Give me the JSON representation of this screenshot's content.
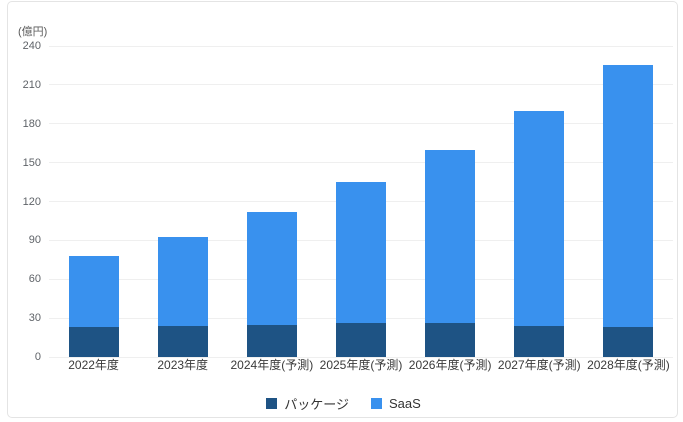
{
  "unit_label": "(億円)",
  "colors": {
    "package_series": "#1e5384",
    "saas_series": "#3991ee",
    "gridline": "#efefef",
    "tick_text": "#5f6368",
    "axis_label_text": "#3a3a3a",
    "card_border": "#e4e4e4",
    "background": "#ffffff"
  },
  "chart_data": {
    "type": "bar",
    "stacked": true,
    "title": "",
    "ylabel": "(億円)",
    "xlabel": "",
    "categories": [
      "2022年度",
      "2023年度",
      "2024年度(予測)",
      "2025年度(予測)",
      "2026年度(予測)",
      "2027年度(予測)",
      "2028年度(予測)"
    ],
    "series": [
      {
        "name": "パッケージ",
        "color": "#1e5384",
        "values": [
          23,
          24,
          25,
          26,
          26,
          24,
          23
        ]
      },
      {
        "name": "SaaS",
        "color": "#3991ee",
        "values": [
          55,
          69,
          87,
          109,
          134,
          166,
          202
        ]
      }
    ],
    "ylim": [
      0,
      240
    ],
    "yticks": [
      0,
      30,
      60,
      90,
      120,
      150,
      180,
      210,
      240
    ],
    "grid": true,
    "legend_position": "bottom"
  }
}
